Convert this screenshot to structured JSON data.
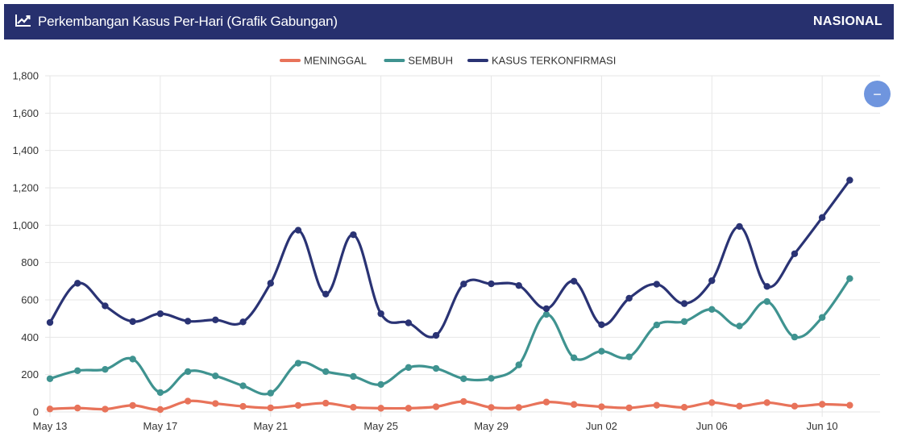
{
  "header": {
    "title": "Perkembangan Kasus Per-Hari (Grafik Gabungan)",
    "scope": "NASIONAL",
    "icon": "line-chart-icon"
  },
  "collapse_button": {
    "icon": "minus-icon",
    "label": "−"
  },
  "chart_data": {
    "type": "line",
    "title": "",
    "xlabel": "",
    "ylabel": "",
    "x": [
      "May 13",
      "May 14",
      "May 15",
      "May 16",
      "May 17",
      "May 18",
      "May 19",
      "May 20",
      "May 21",
      "May 22",
      "May 23",
      "May 24",
      "May 25",
      "May 26",
      "May 27",
      "May 28",
      "May 29",
      "May 30",
      "May 31",
      "Jun 01",
      "Jun 02",
      "Jun 03",
      "Jun 04",
      "Jun 05",
      "Jun 06",
      "Jun 07",
      "Jun 08",
      "Jun 09",
      "Jun 10",
      "Jun 11"
    ],
    "x_tick_labels": [
      "May 13",
      "May 17",
      "May 21",
      "May 25",
      "May 29",
      "Jun 02",
      "Jun 06",
      "Jun 10"
    ],
    "ylim": [
      0,
      1800
    ],
    "y_ticks": [
      0,
      200,
      400,
      600,
      800,
      1000,
      1200,
      1400,
      1600,
      1800
    ],
    "y_tick_labels": [
      "0",
      "200",
      "400",
      "600",
      "800",
      "1,000",
      "1,200",
      "1,400",
      "1,600",
      "1,800"
    ],
    "grid": true,
    "legend_position": "top-center",
    "series": [
      {
        "name": "MENINGGAL",
        "color": "#e8735a",
        "values": [
          16,
          21,
          15,
          35,
          13,
          58,
          45,
          30,
          22,
          35,
          47,
          25,
          20,
          20,
          28,
          56,
          24,
          24,
          53,
          40,
          28,
          22,
          36,
          25,
          50,
          31,
          50,
          31,
          41,
          36
        ]
      },
      {
        "name": "SEMBUH",
        "color": "#3f9390",
        "values": [
          178,
          221,
          228,
          283,
          104,
          216,
          193,
          140,
          101,
          261,
          216,
          190,
          147,
          238,
          233,
          178,
          180,
          252,
          522,
          290,
          325,
          295,
          466,
          484,
          549,
          460,
          591,
          401,
          506,
          714
        ]
      },
      {
        "name": "KASUS TERKONFIRMASI",
        "color": "#2a3374",
        "values": [
          479,
          689,
          568,
          484,
          526,
          486,
          493,
          482,
          689,
          973,
          631,
          949,
          526,
          477,
          410,
          685,
          686,
          677,
          553,
          700,
          467,
          609,
          684,
          580,
          703,
          993,
          672,
          847,
          1041,
          1241
        ]
      }
    ]
  }
}
